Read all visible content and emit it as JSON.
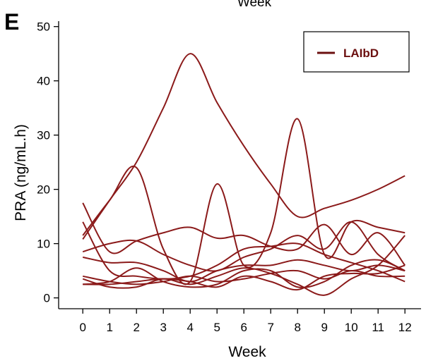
{
  "panel_letter": "E",
  "top_caption": "Week",
  "colors": {
    "series": "#8b1a1a",
    "legend_line": "#6b0f0f",
    "legend_text": "#6b0f0f"
  },
  "chart_data": {
    "type": "line",
    "title": "",
    "xlabel": "Week",
    "ylabel": "PRA (ng/mL.h)",
    "xlim": [
      -0.9,
      12.6
    ],
    "ylim": [
      -2,
      51
    ],
    "xticks": [
      0,
      1,
      2,
      3,
      4,
      5,
      6,
      7,
      8,
      9,
      10,
      11,
      12
    ],
    "yticks": [
      0,
      10,
      20,
      30,
      40,
      50
    ],
    "legend": {
      "entries": [
        "LAIbD"
      ],
      "position": "top-right"
    },
    "series": [
      {
        "x": [
          0,
          1,
          2,
          3,
          4,
          5,
          6,
          7,
          8,
          9,
          10,
          11,
          12
        ],
        "y": [
          10.8,
          18,
          25,
          35,
          45,
          36,
          28,
          21,
          15,
          16.5,
          18,
          20,
          22.5
        ]
      },
      {
        "x": [
          0,
          1,
          2,
          3,
          4,
          5,
          6,
          7,
          8,
          9,
          10,
          11,
          12
        ],
        "y": [
          11.5,
          18,
          24,
          9,
          3,
          21,
          6,
          12,
          33,
          8,
          14,
          13,
          12
        ]
      },
      {
        "x": [
          0,
          1,
          2,
          3,
          4,
          5,
          6,
          7,
          8,
          9,
          10,
          11,
          12
        ],
        "y": [
          17.5,
          8.5,
          10.5,
          12,
          13,
          11,
          11.5,
          9.5,
          9,
          13.5,
          8,
          12,
          6
        ]
      },
      {
        "x": [
          0,
          1,
          2,
          3,
          4,
          5,
          6,
          7,
          8,
          9,
          10,
          11,
          12
        ],
        "y": [
          14,
          5,
          4,
          3.5,
          4,
          6,
          9,
          9.5,
          10,
          8,
          6.5,
          5,
          3
        ]
      },
      {
        "x": [
          0,
          1,
          2,
          3,
          4,
          5,
          6,
          7,
          8,
          9,
          10,
          11,
          12
        ],
        "y": [
          8.5,
          10,
          10.5,
          8,
          6,
          5,
          7.5,
          9,
          11.5,
          9,
          14,
          8,
          5
        ]
      },
      {
        "x": [
          0,
          1,
          2,
          3,
          4,
          5,
          6,
          7,
          8,
          9,
          10,
          11,
          12
        ],
        "y": [
          7.5,
          6.5,
          6.5,
          5,
          3,
          5,
          6,
          6,
          7,
          6,
          5,
          6,
          5
        ]
      },
      {
        "x": [
          0,
          1,
          2,
          3,
          4,
          5,
          6,
          7,
          8,
          9,
          10,
          11,
          12
        ],
        "y": [
          4,
          3,
          2.5,
          3,
          4,
          3,
          3.5,
          4.5,
          5,
          3.5,
          5,
          4,
          4
        ]
      },
      {
        "x": [
          0,
          1,
          2,
          3,
          4,
          5,
          6,
          7,
          8,
          9,
          10,
          11,
          12
        ],
        "y": [
          3.5,
          2,
          2,
          3.5,
          2.5,
          4,
          5.5,
          4.5,
          2.5,
          0.5,
          3.5,
          6,
          11.5
        ]
      },
      {
        "x": [
          0,
          1,
          2,
          3,
          4,
          5,
          6,
          7,
          8,
          9,
          10,
          11,
          12
        ],
        "y": [
          2.5,
          3,
          5.5,
          3,
          2,
          2.5,
          5,
          5,
          2,
          3,
          6,
          7,
          5
        ]
      },
      {
        "x": [
          0,
          1,
          2,
          3,
          4,
          5,
          6,
          7,
          8,
          9,
          10,
          11,
          12
        ],
        "y": [
          2.5,
          2.5,
          3,
          3.5,
          3,
          2,
          4,
          3,
          1.5,
          4,
          4.5,
          4.5,
          6
        ]
      }
    ]
  }
}
